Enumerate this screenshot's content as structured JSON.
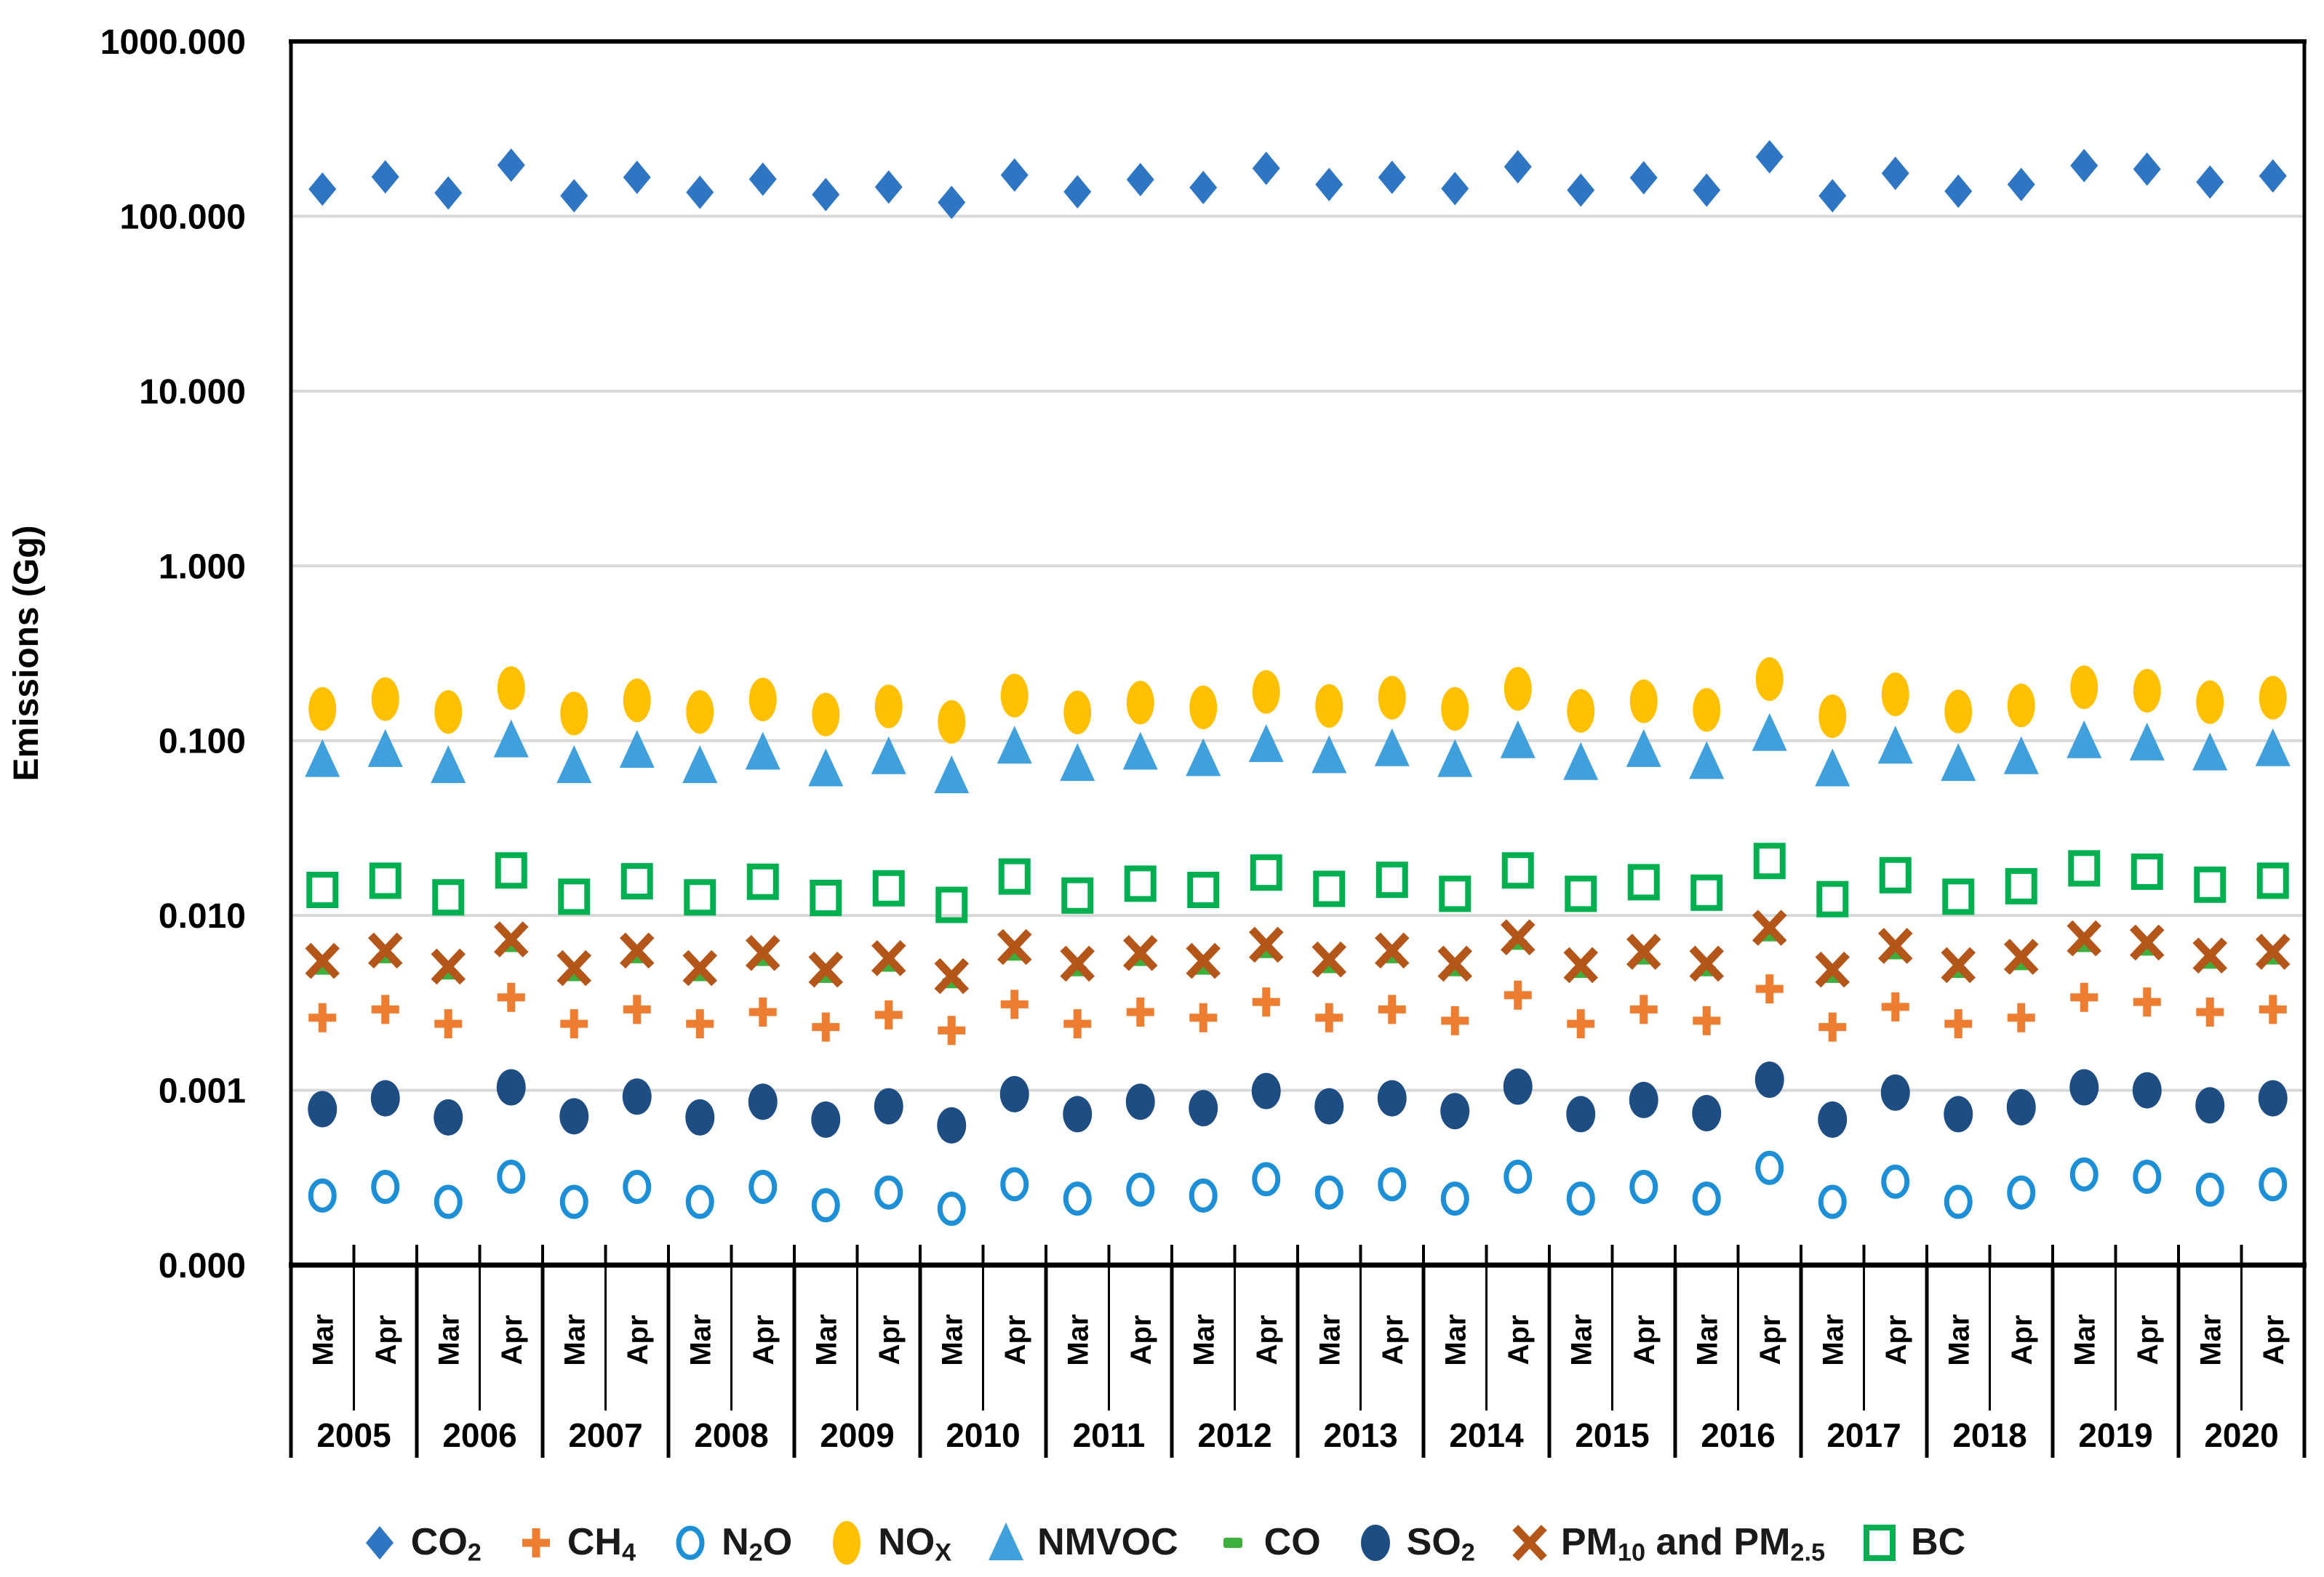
{
  "figure": {
    "background_color": "#ffffff",
    "plot_border_color": "#000000",
    "gridline_color": "#d8d8d8"
  },
  "chart_data": {
    "type": "scatter",
    "title": "",
    "xlabel": "",
    "ylabel": "Emissions (Gg)",
    "y_scale": "log",
    "ylim": [
      0.0001,
      1000
    ],
    "grid": "horizontal",
    "legend_position": "bottom",
    "y_ticks": [
      {
        "value": 1000,
        "label": "1000.000"
      },
      {
        "value": 100,
        "label": "100.000"
      },
      {
        "value": 10,
        "label": "10.000"
      },
      {
        "value": 1,
        "label": "1.000"
      },
      {
        "value": 0.1,
        "label": "0.100"
      },
      {
        "value": 0.01,
        "label": "0.010"
      },
      {
        "value": 0.001,
        "label": "0.001"
      },
      {
        "value": 0.0001,
        "label": "0.000"
      }
    ],
    "x_years": [
      "2005",
      "2006",
      "2007",
      "2008",
      "2009",
      "2010",
      "2011",
      "2012",
      "2013",
      "2014",
      "2015",
      "2016",
      "2017",
      "2018",
      "2019",
      "2020"
    ],
    "x_months_per_year": [
      "Mar",
      "Apr"
    ],
    "series": [
      {
        "name": "CO2",
        "label_parts": [
          {
            "t": "CO"
          },
          {
            "t": "2",
            "sub": true
          }
        ],
        "marker": "diamond",
        "color": "#2E75C3",
        "values": [
          143,
          168,
          136,
          196,
          131,
          167,
          137,
          163,
          133,
          147,
          120,
          172,
          138,
          162,
          146,
          188,
          152,
          167,
          144,
          192,
          141,
          166,
          141,
          219,
          131,
          176,
          139,
          152,
          195,
          186,
          157,
          170
        ]
      },
      {
        "name": "CH4",
        "label_parts": [
          {
            "t": "CH"
          },
          {
            "t": "4",
            "sub": true
          }
        ],
        "marker": "plus",
        "color": "#ED7D31",
        "values": [
          0.0026,
          0.0029,
          0.0024,
          0.0034,
          0.0024,
          0.0029,
          0.0024,
          0.0028,
          0.0023,
          0.0027,
          0.0022,
          0.0031,
          0.0024,
          0.0028,
          0.0026,
          0.0032,
          0.0026,
          0.0029,
          0.0025,
          0.0035,
          0.0024,
          0.0029,
          0.0025,
          0.0038,
          0.0023,
          0.003,
          0.0024,
          0.0026,
          0.0034,
          0.0032,
          0.0028,
          0.0029
        ]
      },
      {
        "name": "N2O",
        "label_parts": [
          {
            "t": "N"
          },
          {
            "t": "2",
            "sub": true
          },
          {
            "t": "O"
          }
        ],
        "marker": "open-circle",
        "color": "#1C8FD6",
        "values": [
          0.00025,
          0.00028,
          0.00023,
          0.00032,
          0.00023,
          0.00028,
          0.00023,
          0.00028,
          0.00022,
          0.00026,
          0.00021,
          0.00029,
          0.00024,
          0.00027,
          0.00025,
          0.00031,
          0.00026,
          0.00029,
          0.00024,
          0.00032,
          0.00024,
          0.00028,
          0.00024,
          0.00036,
          0.00023,
          0.0003,
          0.00023,
          0.00026,
          0.00033,
          0.00032,
          0.00027,
          0.00029
        ]
      },
      {
        "name": "NOX",
        "label_parts": [
          {
            "t": "NO"
          },
          {
            "t": "X",
            "sub": true
          }
        ],
        "marker": "ellipse",
        "color": "#FFC000",
        "values": [
          0.152,
          0.173,
          0.146,
          0.2,
          0.143,
          0.17,
          0.146,
          0.172,
          0.141,
          0.157,
          0.128,
          0.181,
          0.145,
          0.165,
          0.155,
          0.19,
          0.158,
          0.176,
          0.152,
          0.198,
          0.148,
          0.168,
          0.15,
          0.225,
          0.138,
          0.184,
          0.147,
          0.159,
          0.202,
          0.193,
          0.166,
          0.176
        ]
      },
      {
        "name": "NMVOC",
        "label_parts": [
          {
            "t": "NMVOC"
          }
        ],
        "marker": "triangle",
        "color": "#3FA0DC",
        "values": [
          0.078,
          0.089,
          0.072,
          0.101,
          0.072,
          0.088,
          0.072,
          0.086,
          0.069,
          0.081,
          0.063,
          0.093,
          0.074,
          0.086,
          0.079,
          0.095,
          0.082,
          0.09,
          0.078,
          0.1,
          0.075,
          0.089,
          0.076,
          0.11,
          0.069,
          0.093,
          0.074,
          0.081,
          0.1,
          0.097,
          0.085,
          0.09
        ]
      },
      {
        "name": "CO",
        "label_parts": [
          {
            "t": "CO"
          }
        ],
        "marker": "dash",
        "color": "#3CAF3C",
        "values": [
          0.0049,
          0.0057,
          0.0046,
          0.0066,
          0.0045,
          0.0057,
          0.0045,
          0.0055,
          0.0044,
          0.0051,
          0.0041,
          0.0059,
          0.0048,
          0.0055,
          0.0049,
          0.0061,
          0.005,
          0.0057,
          0.0048,
          0.0068,
          0.0047,
          0.0056,
          0.0048,
          0.0076,
          0.0044,
          0.006,
          0.0047,
          0.0052,
          0.0066,
          0.0063,
          0.0053,
          0.0056
        ]
      },
      {
        "name": "SO2",
        "label_parts": [
          {
            "t": "SO"
          },
          {
            "t": "2",
            "sub": true
          }
        ],
        "marker": "circle",
        "color": "#1D4D82",
        "values": [
          0.00078,
          0.0009,
          0.0007,
          0.00104,
          0.00071,
          0.00092,
          0.0007,
          0.00086,
          0.00068,
          0.00081,
          0.00063,
          0.00095,
          0.00073,
          0.00086,
          0.00079,
          0.00099,
          0.00081,
          0.0009,
          0.00076,
          0.00105,
          0.00073,
          0.00088,
          0.00074,
          0.00115,
          0.00068,
          0.00097,
          0.00073,
          0.0008,
          0.00104,
          0.001,
          0.00082,
          0.0009
        ]
      },
      {
        "name": "PM10 and PM2.5",
        "label_parts": [
          {
            "t": "PM"
          },
          {
            "t": "10",
            "sub": true
          },
          {
            "t": " and PM"
          },
          {
            "t": "2.5",
            "sub": true
          }
        ],
        "marker": "x",
        "color": "#B45519",
        "values": [
          0.0055,
          0.0063,
          0.0051,
          0.0073,
          0.005,
          0.0063,
          0.005,
          0.0061,
          0.0049,
          0.0057,
          0.0045,
          0.0066,
          0.0053,
          0.0061,
          0.0055,
          0.0068,
          0.0056,
          0.0063,
          0.0053,
          0.0075,
          0.0052,
          0.0062,
          0.0053,
          0.0085,
          0.0049,
          0.0067,
          0.0052,
          0.0058,
          0.0074,
          0.007,
          0.0059,
          0.0062
        ]
      },
      {
        "name": "BC",
        "label_parts": [
          {
            "t": "BC"
          }
        ],
        "marker": "open-square",
        "color": "#00B050",
        "values": [
          0.014,
          0.0158,
          0.0127,
          0.0181,
          0.0128,
          0.0157,
          0.0127,
          0.0156,
          0.0126,
          0.0143,
          0.0115,
          0.0167,
          0.013,
          0.0152,
          0.014,
          0.0176,
          0.0142,
          0.016,
          0.0133,
          0.0181,
          0.0133,
          0.0155,
          0.0135,
          0.0205,
          0.0124,
          0.017,
          0.0128,
          0.0147,
          0.0186,
          0.0178,
          0.015,
          0.0158
        ]
      }
    ]
  }
}
